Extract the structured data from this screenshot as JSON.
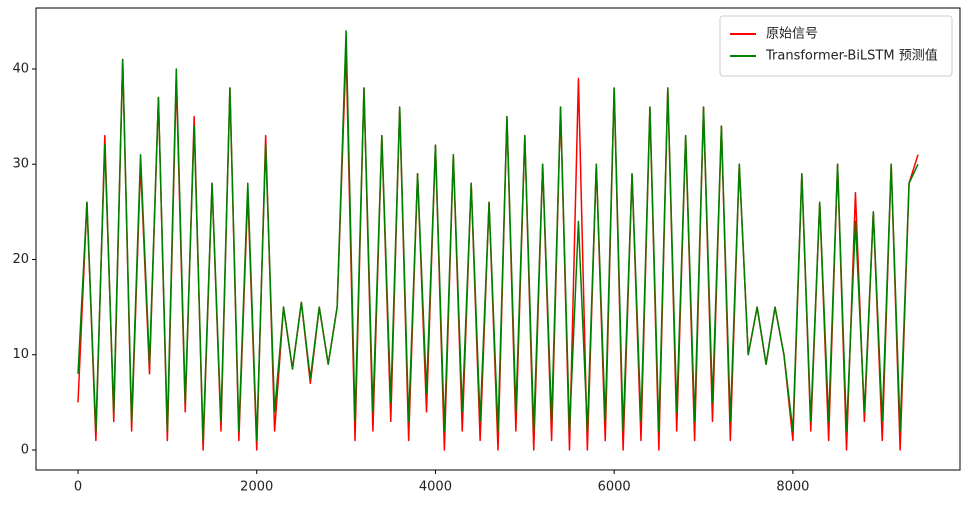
{
  "chart_data": {
    "type": "line",
    "x": [
      0,
      100,
      200,
      300,
      400,
      500,
      600,
      700,
      800,
      900,
      1000,
      1100,
      1200,
      1300,
      1400,
      1500,
      1600,
      1700,
      1800,
      1900,
      2000,
      2100,
      2200,
      2300,
      2400,
      2500,
      2600,
      2700,
      2800,
      2900,
      3000,
      3100,
      3200,
      3300,
      3400,
      3500,
      3600,
      3700,
      3800,
      3900,
      4000,
      4100,
      4200,
      4300,
      4400,
      4500,
      4600,
      4700,
      4800,
      4900,
      5000,
      5100,
      5200,
      5300,
      5400,
      5500,
      5600,
      5700,
      5800,
      5900,
      6000,
      6100,
      6200,
      6300,
      6400,
      6500,
      6600,
      6700,
      6800,
      6900,
      7000,
      7100,
      7200,
      7300,
      7400,
      7500,
      7600,
      7700,
      7800,
      7900,
      8000,
      8100,
      8200,
      8300,
      8400,
      8500,
      8600,
      8700,
      8800,
      8900,
      9000,
      9100,
      9200,
      9300,
      9400
    ],
    "series": [
      {
        "name": "原始信号",
        "color": "#ff0000",
        "values": [
          5,
          26,
          1,
          33,
          3,
          41,
          2,
          30,
          8,
          37,
          1,
          39,
          4,
          35,
          0,
          28,
          2,
          38,
          1,
          27,
          0,
          33,
          2,
          15,
          8.5,
          15.5,
          7,
          15,
          9,
          15,
          42,
          1,
          38,
          2,
          33,
          3,
          36,
          1,
          29,
          4,
          32,
          0,
          31,
          2,
          28,
          1,
          26,
          0,
          35,
          2,
          33,
          0,
          30,
          1,
          36,
          0,
          39,
          0,
          30,
          1,
          38,
          0,
          29,
          1,
          36,
          0,
          38,
          2,
          33,
          1,
          36,
          3,
          34,
          1,
          30,
          10,
          15,
          9,
          15,
          10,
          1,
          29,
          2,
          26,
          1,
          30,
          0,
          27,
          3,
          25,
          1,
          30,
          0,
          28,
          31
        ]
      },
      {
        "name": "Transformer-BiLSTM 预测值",
        "color": "#008000",
        "values": [
          8,
          26,
          2,
          32,
          4,
          41,
          3,
          31,
          9,
          37,
          2,
          40,
          5,
          34,
          1,
          28,
          3,
          38,
          2,
          28,
          1,
          32,
          4,
          15,
          8.5,
          15.5,
          7.5,
          15,
          9,
          15,
          44,
          3,
          38,
          4,
          33,
          5,
          36,
          3,
          29,
          6,
          32,
          2,
          31,
          4,
          28,
          3,
          26,
          2,
          35,
          4,
          33,
          2,
          30,
          3,
          36,
          2,
          24,
          2,
          30,
          3,
          38,
          2,
          29,
          3,
          36,
          2,
          38,
          4,
          33,
          3,
          36,
          5,
          34,
          3,
          30,
          10,
          15,
          9,
          15,
          10,
          2,
          29,
          3,
          26,
          3,
          30,
          2,
          24,
          4,
          25,
          3,
          30,
          2,
          28,
          30
        ]
      }
    ],
    "xlim": [
      -470,
      9870
    ],
    "ylim": [
      -2.1,
      46.4
    ],
    "xticks": [
      0,
      2000,
      4000,
      6000,
      8000
    ],
    "yticks": [
      0,
      10,
      20,
      30,
      40
    ],
    "legend": "upper right"
  }
}
